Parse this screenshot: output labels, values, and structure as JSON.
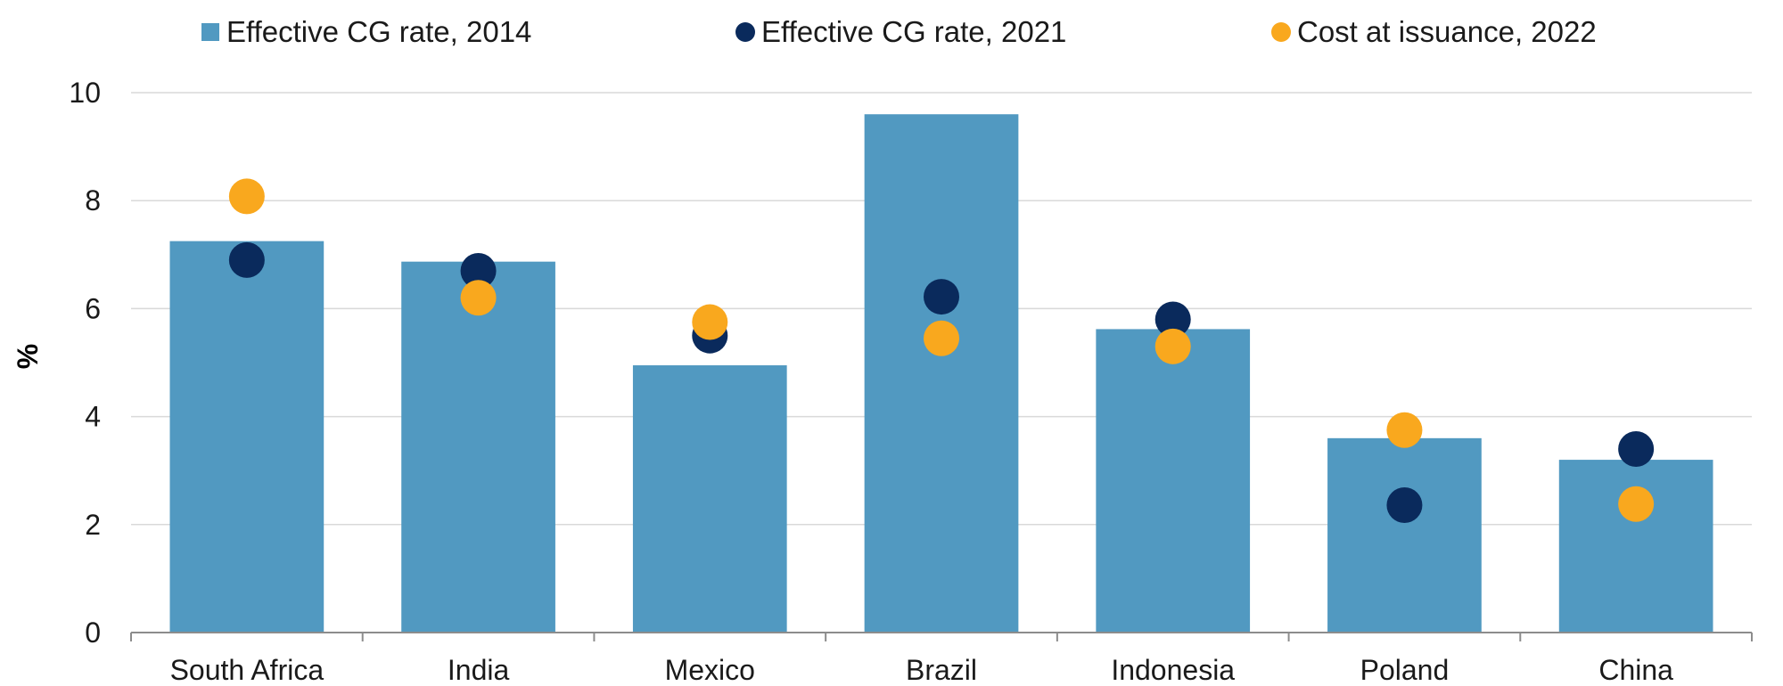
{
  "chart_data": {
    "type": "bar",
    "categories": [
      "South Africa",
      "India",
      "Mexico",
      "Brazil",
      "Indonesia",
      "Poland",
      "China"
    ],
    "ylabel": "%",
    "ylim": [
      0,
      10
    ],
    "yticks": [
      0,
      2,
      4,
      6,
      8,
      10
    ],
    "grid": true,
    "legend_position": "top",
    "series": [
      {
        "name": "Effective CG rate, 2014",
        "kind": "bar",
        "marker": "square",
        "color": "#5199c1",
        "values": [
          7.25,
          6.87,
          4.95,
          9.6,
          5.62,
          3.6,
          3.2
        ]
      },
      {
        "name": "Effective CG rate, 2021",
        "kind": "scatter",
        "marker": "circle",
        "color": "#0a2a5c",
        "values": [
          6.9,
          6.7,
          5.5,
          6.22,
          5.8,
          2.36,
          3.4
        ]
      },
      {
        "name": "Cost at issuance, 2022",
        "kind": "scatter",
        "marker": "circle",
        "color": "#f9a81e",
        "values": [
          8.08,
          6.2,
          5.75,
          5.45,
          5.3,
          3.75,
          2.38
        ]
      }
    ]
  }
}
